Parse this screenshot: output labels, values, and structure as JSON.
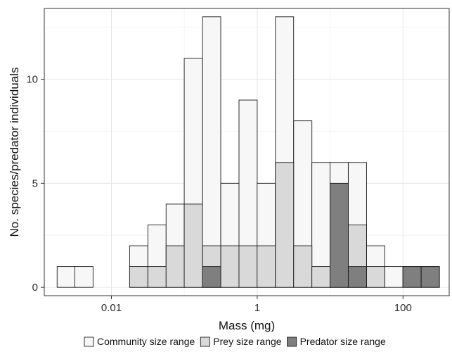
{
  "chart_data": {
    "type": "bar",
    "title": "",
    "xlabel": "Mass (mg)",
    "ylabel": "No. species/predator individuals",
    "x_scale": "log10",
    "x_ticks": [
      0.01,
      1,
      100
    ],
    "x_tick_labels": [
      "0.01",
      "1",
      "100"
    ],
    "xlim": [
      0.0012,
      430
    ],
    "y_ticks": [
      0,
      5,
      10
    ],
    "y_tick_labels": [
      "0",
      "5",
      "10"
    ],
    "ylim": [
      -0.4,
      13.4
    ],
    "grid": true,
    "legend_position": "bottom",
    "bin_width_log10": 0.25,
    "series": [
      {
        "name": "Community size range",
        "color": "#f7f7f7",
        "bin_centers": [
          0.0024,
          0.0042,
          0.0133,
          0.0237,
          0.0422,
          0.075,
          0.133,
          0.237,
          0.422,
          0.75,
          1.33,
          2.37,
          4.22,
          7.5,
          13.3,
          23.7,
          42.2,
          75,
          133,
          237
        ],
        "values": [
          1,
          1,
          0,
          2,
          3,
          4,
          11,
          13,
          5,
          9,
          5,
          13,
          8,
          6,
          6,
          6,
          2,
          1,
          1,
          1
        ]
      },
      {
        "name": "Prey size range",
        "color": "#d9d9d9",
        "bin_centers": [
          0.0237,
          0.0422,
          0.075,
          0.133,
          0.237,
          0.422,
          0.75,
          1.33,
          2.37,
          4.22,
          7.5,
          13.3,
          23.7,
          42.2,
          75
        ],
        "values": [
          1,
          1,
          2,
          4,
          2,
          2,
          2,
          2,
          6,
          2,
          1,
          2,
          3,
          1,
          0
        ]
      },
      {
        "name": "Predator size range",
        "color": "#7f7f7f",
        "bin_centers": [
          0.237,
          13.3,
          23.7,
          133,
          237
        ],
        "values": [
          1,
          5,
          1,
          1,
          1
        ]
      }
    ]
  }
}
